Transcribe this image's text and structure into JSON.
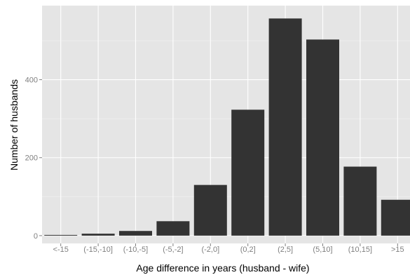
{
  "chart_data": {
    "type": "bar",
    "title": "",
    "xlabel": "Age difference in years (husband - wife)",
    "ylabel": "Number of husbands",
    "categories": [
      "<-15",
      "(-15,-10]",
      "(-10,-5]",
      "(-5,-2]",
      "(-2,0]",
      "(0,2]",
      "(2,5]",
      "(5,10]",
      "(10,15]",
      ">15"
    ],
    "values": [
      1,
      5,
      12,
      37,
      130,
      323,
      557,
      503,
      177,
      92
    ],
    "ylim": [
      -20,
      590
    ],
    "yticks": [
      0,
      200,
      400
    ],
    "grid": true,
    "colors": {
      "panel": "#e5e5e5",
      "bar": "#333333",
      "gridline": "#ffffff"
    }
  }
}
